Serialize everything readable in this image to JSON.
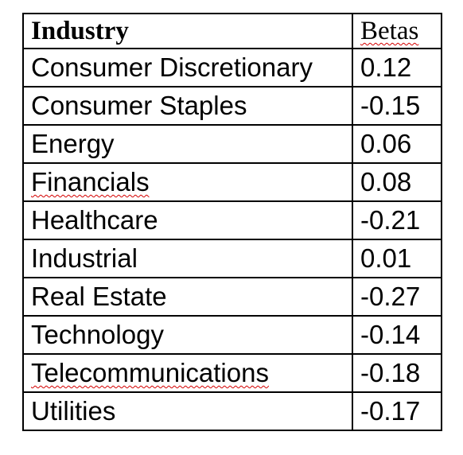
{
  "table": {
    "headers": [
      "Industry",
      "Betas"
    ],
    "rows": [
      {
        "industry": "Consumer Discretionary",
        "beta": "0.12"
      },
      {
        "industry": "Consumer Staples",
        "beta": "-0.15"
      },
      {
        "industry": "Energy",
        "beta": "0.06"
      },
      {
        "industry": "Financials",
        "beta": "0.08"
      },
      {
        "industry": "Healthcare",
        "beta": "-0.21"
      },
      {
        "industry": "Industrial",
        "beta": "0.01"
      },
      {
        "industry": "Real Estate",
        "beta": "-0.27"
      },
      {
        "industry": "Technology",
        "beta": "-0.14"
      },
      {
        "industry": "Telecommunications",
        "beta": "-0.18"
      },
      {
        "industry": "Utilities",
        "beta": "-0.17"
      }
    ]
  },
  "colors": {
    "border": "#000000",
    "text": "#000000",
    "spellcheck_underline": "#d40000"
  }
}
